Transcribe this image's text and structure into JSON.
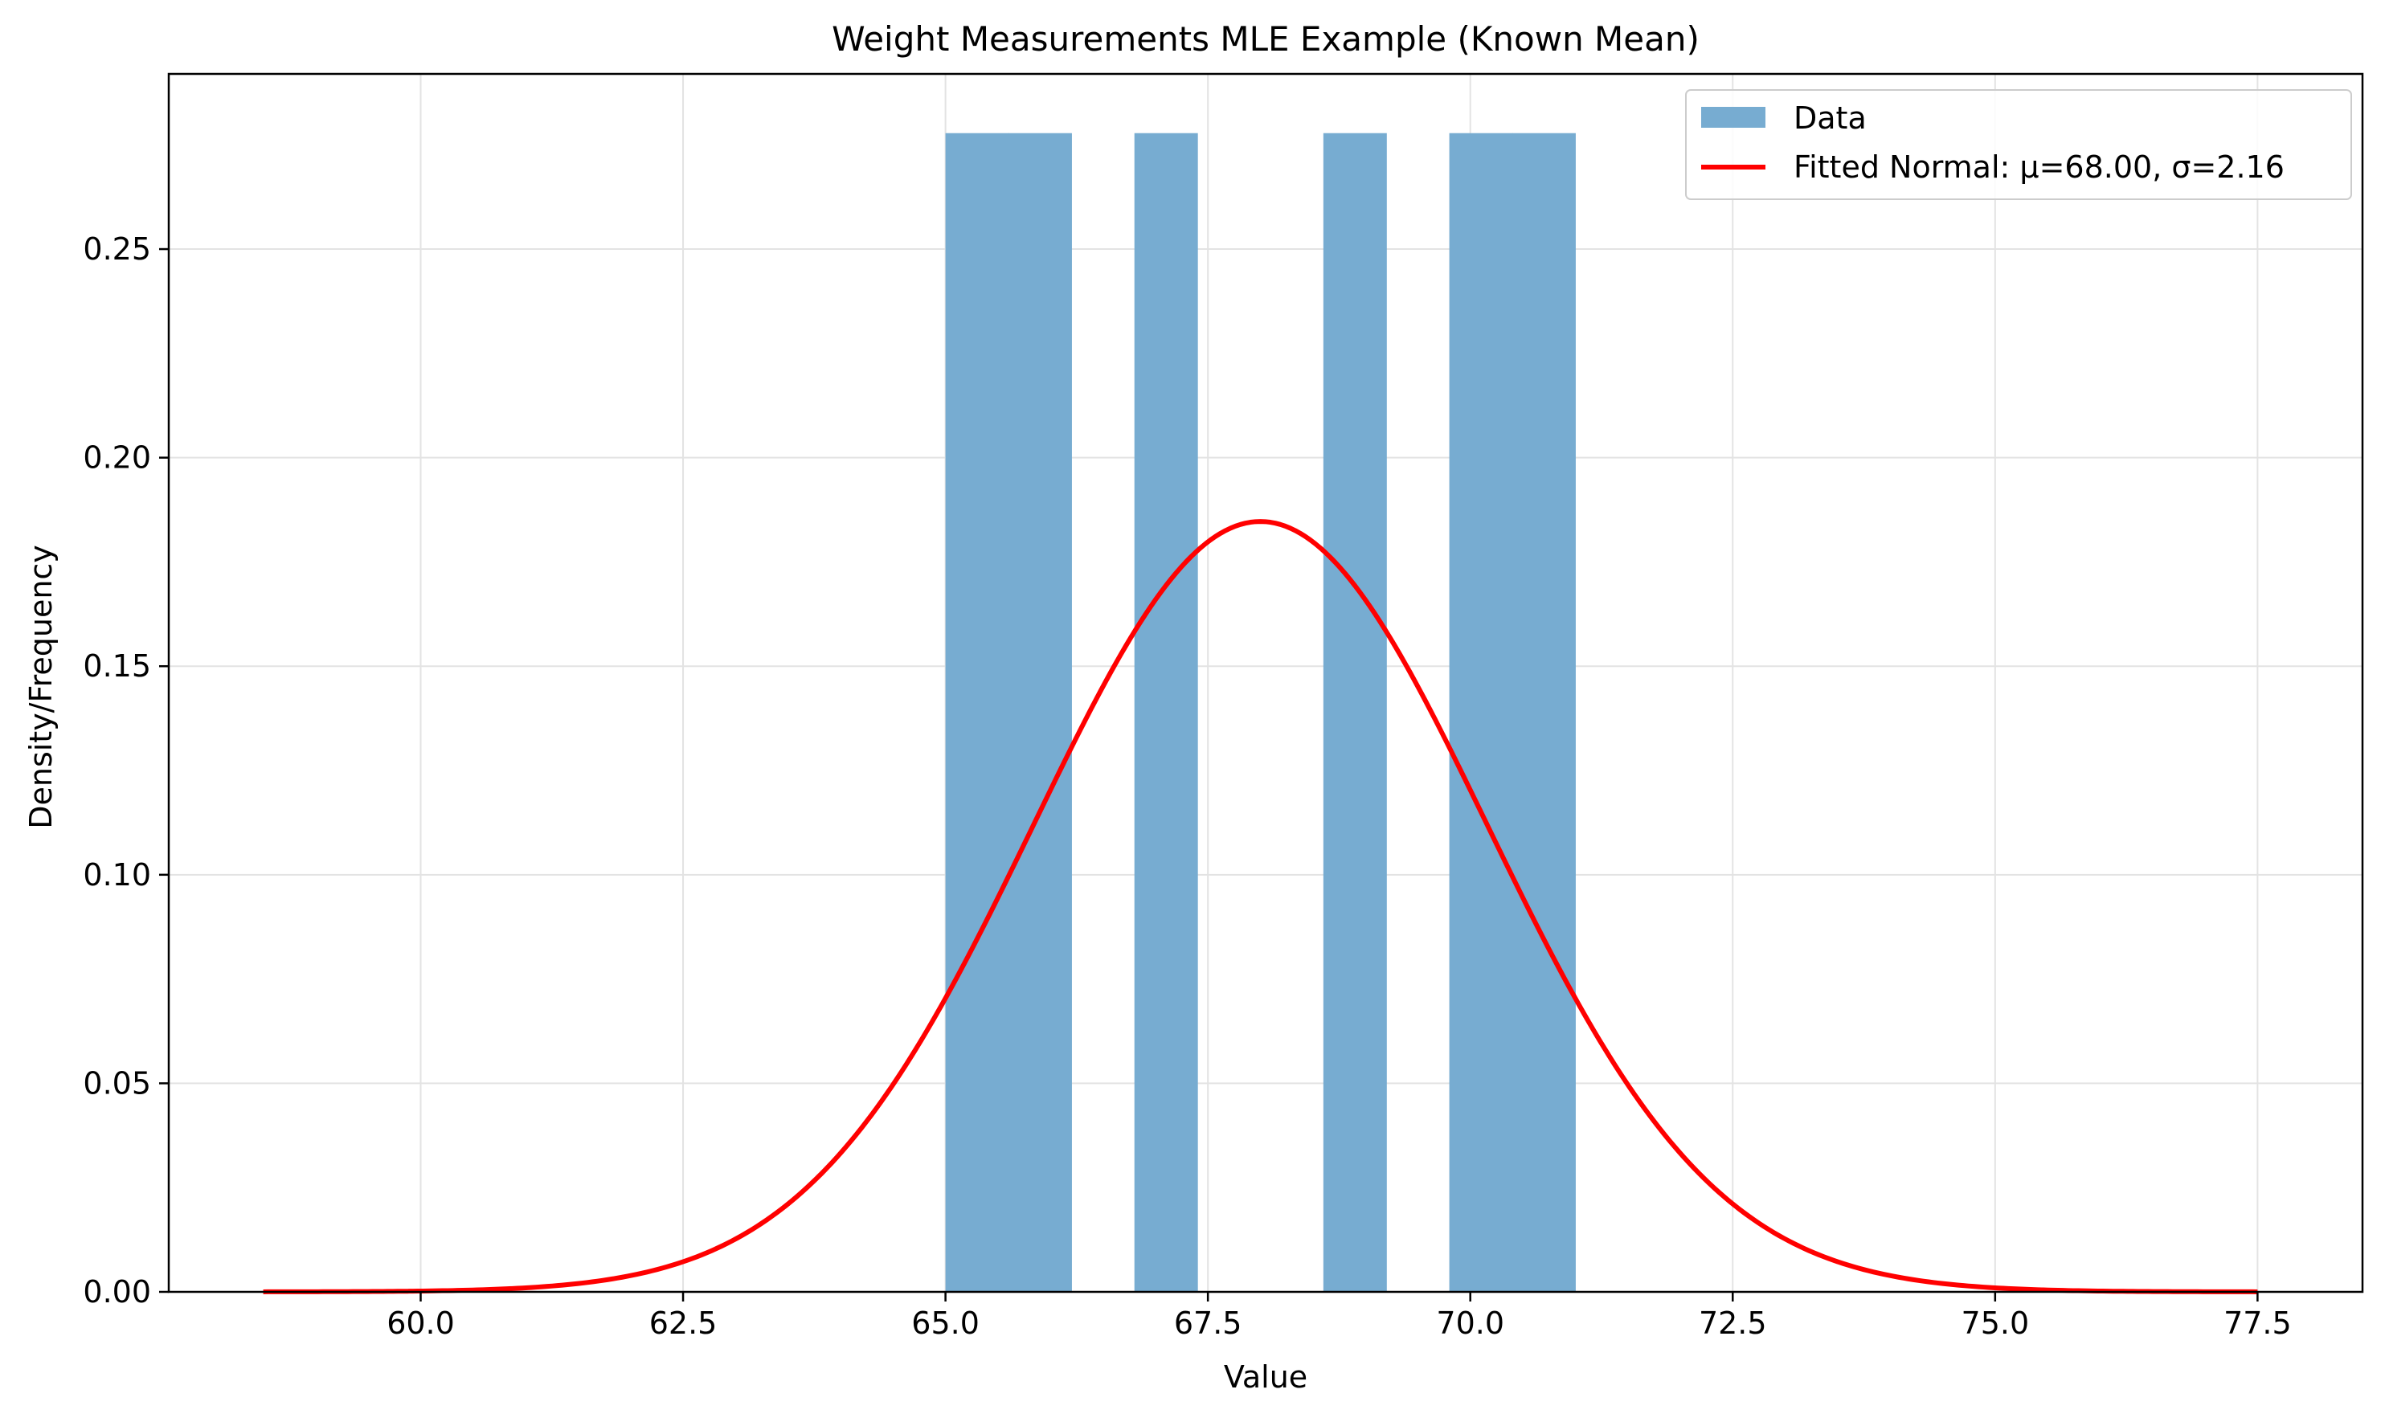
{
  "chart_data": {
    "type": "bar",
    "title": "Weight Measurements MLE Example (Known Mean)",
    "xlabel": "Value",
    "ylabel": "Density/Frequency",
    "xlim": [
      57.6,
      78.5
    ],
    "ylim": [
      0,
      0.292
    ],
    "x_ticks": [
      60.0,
      62.5,
      65.0,
      67.5,
      70.0,
      72.5,
      75.0,
      77.5
    ],
    "x_tick_labels": [
      "60.0",
      "62.5",
      "65.0",
      "67.5",
      "70.0",
      "72.5",
      "75.0",
      "77.5"
    ],
    "y_ticks": [
      0.0,
      0.05,
      0.1,
      0.15,
      0.2,
      0.25
    ],
    "y_tick_labels": [
      "0.00",
      "0.05",
      "0.10",
      "0.15",
      "0.20",
      "0.25"
    ],
    "grid": true,
    "legend_position": "top-right",
    "series": [
      {
        "name": "Data",
        "type": "histogram",
        "color": "#77acd1",
        "bins": [
          {
            "start": 65.0,
            "end": 65.6,
            "value": 0.2778
          },
          {
            "start": 65.6,
            "end": 66.2,
            "value": 0.2778
          },
          {
            "start": 66.8,
            "end": 67.4,
            "value": 0.2778
          },
          {
            "start": 68.6,
            "end": 69.2,
            "value": 0.2778
          },
          {
            "start": 69.8,
            "end": 70.4,
            "value": 0.2778
          },
          {
            "start": 70.4,
            "end": 71.0,
            "value": 0.2778
          }
        ]
      },
      {
        "name": "Fitted Normal: μ=68.00, σ=2.16",
        "type": "line",
        "color": "#ff0000",
        "mu": 68.0,
        "sigma": 2.16,
        "x_range": [
          58.5,
          77.5
        ]
      }
    ]
  }
}
